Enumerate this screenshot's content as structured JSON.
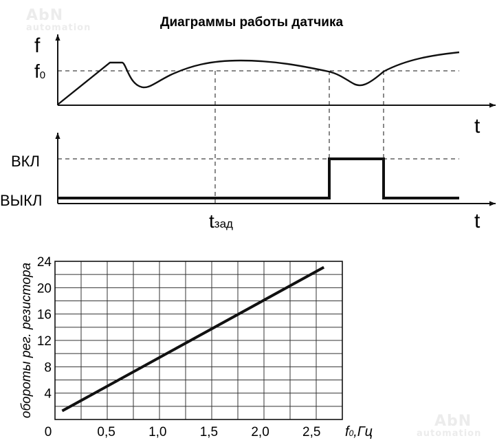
{
  "watermark": {
    "brand": "AbN",
    "sub": "automation"
  },
  "title": "Диаграммы работы датчика",
  "timing": {
    "freq_axis_label": "f",
    "f0_label": "f",
    "f0_sub": "0",
    "time_axis_label_top": "t",
    "time_axis_label_bottom": "t",
    "on_label": "ВКЛ",
    "off_label": "ВЫКЛ",
    "tset_label": "t",
    "tset_sub": "зад"
  },
  "chart_data": {
    "type": "line",
    "title": "",
    "xlabel_main": "f",
    "xlabel_sub": "0",
    "xlabel_rest": ",Гц",
    "ylabel": "обороты рег. резистора",
    "xlim": [
      0,
      2.8
    ],
    "ylim": [
      0,
      24
    ],
    "x_ticks": [
      "0,5",
      "1,0",
      "1,5",
      "2,0",
      "2,5"
    ],
    "x_tick_values": [
      0.5,
      1.0,
      1.5,
      2.0,
      2.5
    ],
    "origin_label": "0",
    "y_ticks": [
      "4",
      "8",
      "12",
      "16",
      "20",
      "24"
    ],
    "y_tick_values": [
      4,
      8,
      12,
      16,
      20,
      24
    ],
    "grid": true,
    "series": [
      {
        "x": [
          0.07,
          2.62
        ],
        "y": [
          1.3,
          23.1
        ]
      }
    ]
  }
}
